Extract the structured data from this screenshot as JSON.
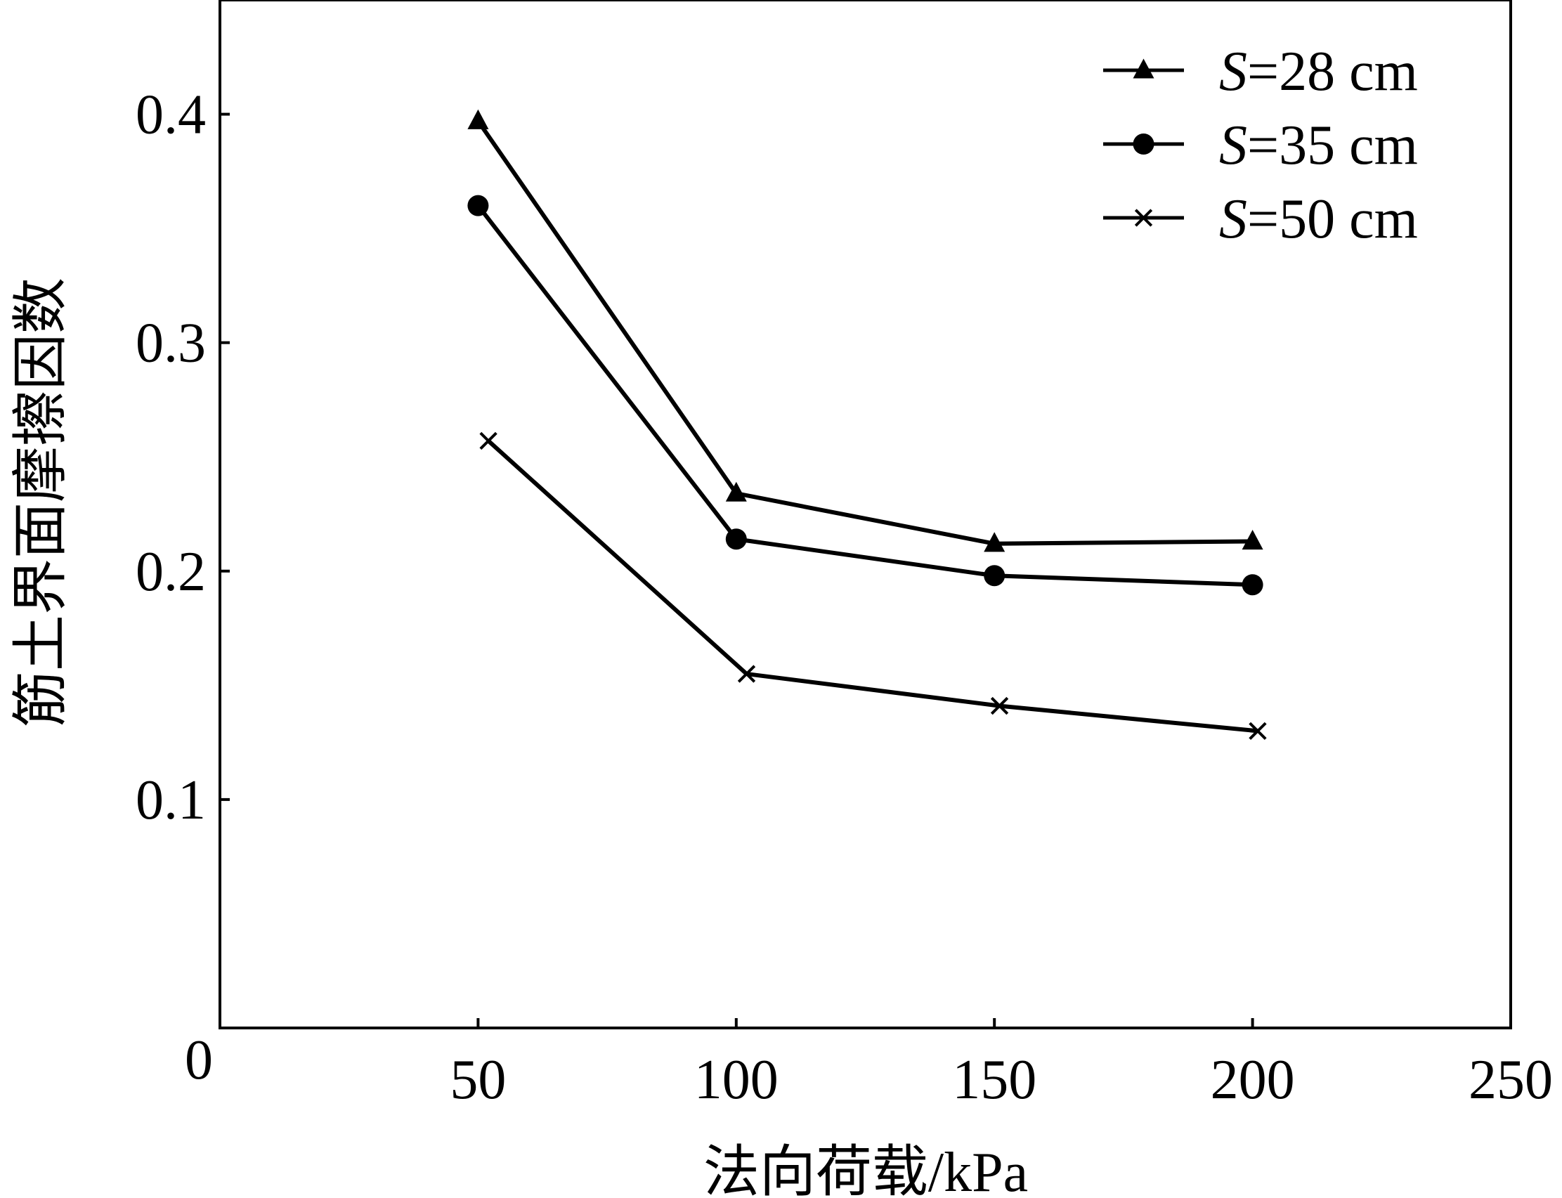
{
  "chart_data": {
    "type": "line",
    "xlabel": "法向荷载/kPa",
    "ylabel": "筋土界面摩擦因数",
    "xlim": [
      0,
      250
    ],
    "ylim": [
      0,
      0.45
    ],
    "x_ticks": [
      "50",
      "100",
      "150",
      "200",
      "250"
    ],
    "y_ticks": [
      "0.1",
      "0.2",
      "0.3",
      "0.4"
    ],
    "origin_label": "0",
    "grid": false,
    "legend_position": "top-right",
    "series": [
      {
        "name": "S=28 cm",
        "name_italic": "S",
        "name_rest": "=28 cm",
        "marker": "triangle",
        "x": [
          50,
          100,
          150,
          200
        ],
        "y": [
          0.397,
          0.234,
          0.212,
          0.213
        ]
      },
      {
        "name": "S=35 cm",
        "name_italic": "S",
        "name_rest": "=35 cm",
        "marker": "circle",
        "x": [
          50,
          100,
          150,
          200
        ],
        "y": [
          0.36,
          0.214,
          0.198,
          0.194
        ]
      },
      {
        "name": "S=50 cm",
        "name_italic": "S",
        "name_rest": "=50 cm",
        "marker": "x",
        "x": [
          52,
          102,
          151,
          201
        ],
        "y": [
          0.257,
          0.155,
          0.141,
          0.13
        ]
      }
    ]
  }
}
